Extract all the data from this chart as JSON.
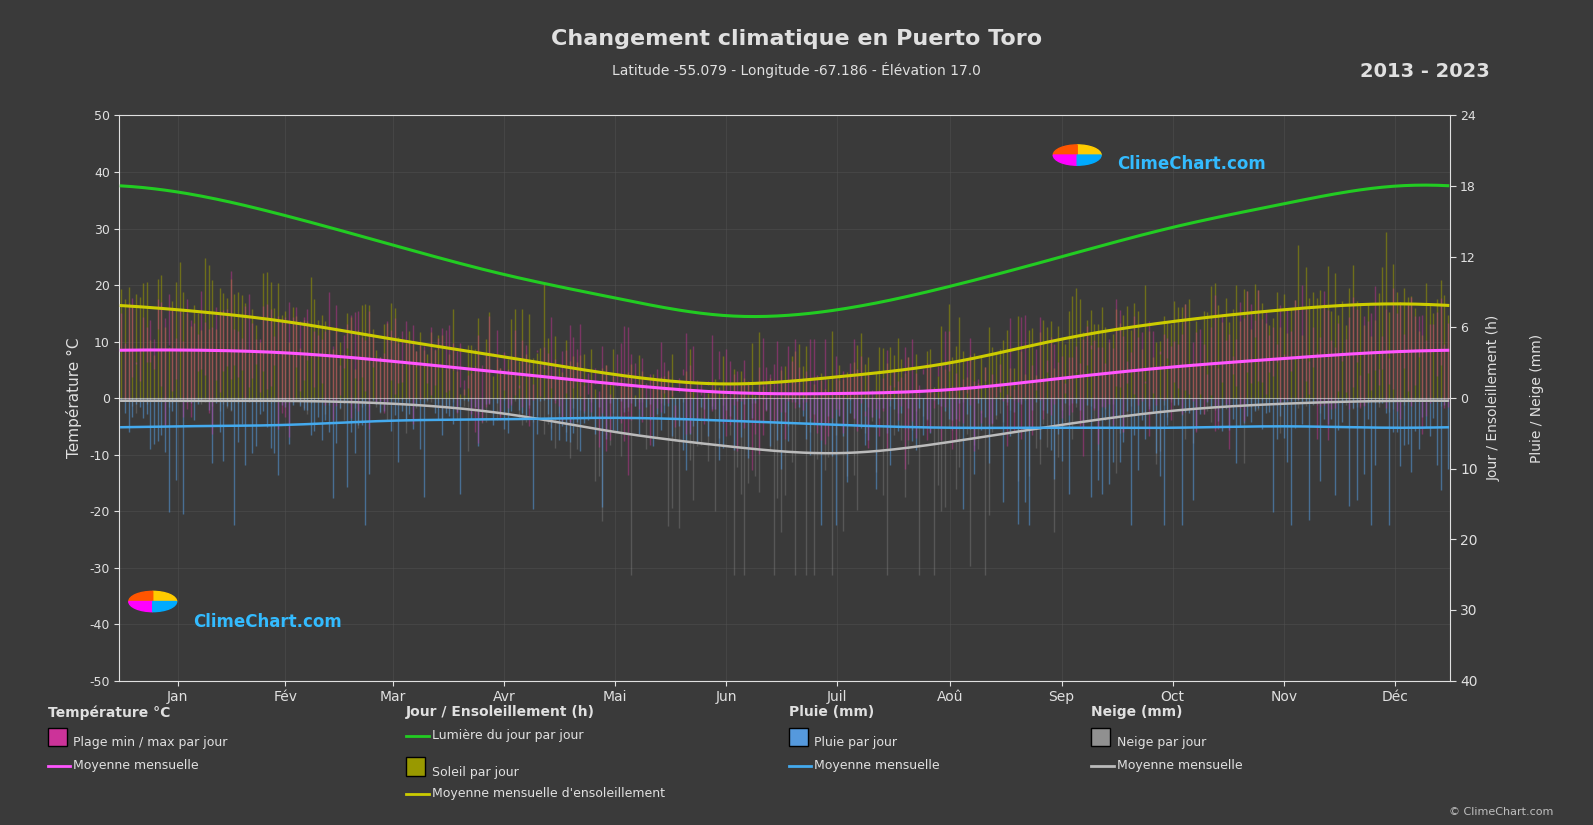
{
  "title": "Changement climatique en Puerto Toro",
  "subtitle": "Latitude -55.079 - Longitude -67.186 - Élévation 17.0",
  "year_range": "2013 - 2023",
  "bg_color": "#3a3a3a",
  "plot_bg_color": "#3a3a3a",
  "text_color": "#e0e0e0",
  "grid_color": "#555555",
  "months": [
    "Jan",
    "Fév",
    "Mar",
    "Avr",
    "Mai",
    "Jun",
    "Juil",
    "Aoû",
    "Sep",
    "Oct",
    "Nov",
    "Déc"
  ],
  "temp_ylim": [
    -50,
    50
  ],
  "sun_max": 24,
  "sun_ticks": [
    0,
    6,
    12,
    18,
    24
  ],
  "precip_max": 40,
  "precip_ticks": [
    0,
    10,
    20,
    30,
    40
  ],
  "temp_mean": [
    8.5,
    8.0,
    6.5,
    4.5,
    2.5,
    1.0,
    0.8,
    1.5,
    3.5,
    5.5,
    7.0,
    8.2
  ],
  "temp_max_mean": [
    14.0,
    13.5,
    11.5,
    9.0,
    6.5,
    5.0,
    4.8,
    5.5,
    8.0,
    10.5,
    12.5,
    13.5
  ],
  "temp_min_mean": [
    3.0,
    2.5,
    1.5,
    0.0,
    -1.5,
    -3.0,
    -3.2,
    -2.5,
    -1.0,
    0.5,
    1.5,
    2.5
  ],
  "temp_max_abs": [
    25.0,
    24.0,
    20.0,
    17.0,
    13.0,
    11.0,
    10.5,
    12.0,
    16.0,
    19.0,
    22.0,
    24.5
  ],
  "temp_min_abs": [
    -8.0,
    -9.0,
    -10.0,
    -13.0,
    -15.0,
    -16.0,
    -17.0,
    -15.0,
    -13.0,
    -10.0,
    -8.5,
    -7.5
  ],
  "daylight": [
    17.5,
    15.5,
    13.0,
    10.5,
    8.5,
    7.0,
    7.5,
    9.5,
    12.0,
    14.5,
    16.5,
    18.0
  ],
  "sunshine": [
    8.0,
    7.0,
    5.5,
    4.0,
    2.5,
    1.5,
    2.0,
    3.5,
    5.5,
    7.0,
    8.0,
    8.5
  ],
  "sunshine_mean": [
    7.5,
    6.5,
    5.0,
    3.5,
    2.0,
    1.2,
    1.8,
    3.0,
    5.0,
    6.5,
    7.5,
    8.0
  ],
  "precip_mm": [
    4.5,
    4.0,
    3.5,
    3.2,
    3.0,
    3.5,
    4.0,
    4.5,
    4.5,
    4.5,
    4.2,
    4.5
  ],
  "precip_mean": [
    4.0,
    3.8,
    3.2,
    3.0,
    2.8,
    3.2,
    3.8,
    4.2,
    4.2,
    4.2,
    4.0,
    4.2
  ],
  "snow_mm": [
    0.5,
    0.5,
    1.0,
    2.5,
    5.0,
    7.0,
    8.0,
    6.5,
    4.0,
    2.0,
    1.0,
    0.5
  ],
  "snow_mean": [
    0.4,
    0.4,
    0.8,
    2.2,
    4.8,
    6.8,
    7.8,
    6.2,
    3.8,
    1.8,
    0.8,
    0.4
  ],
  "left_ylabel": "Température °C",
  "right_top_ylabel": "Jour / Ensoleillement (h)",
  "right_bot_ylabel": "Pluie / Neige (mm)",
  "legend_temp_title": "Température °C",
  "legend_sun_title": "Jour / Ensoleillement (h)",
  "legend_rain_title": "Pluie (mm)",
  "legend_snow_title": "Neige (mm)"
}
